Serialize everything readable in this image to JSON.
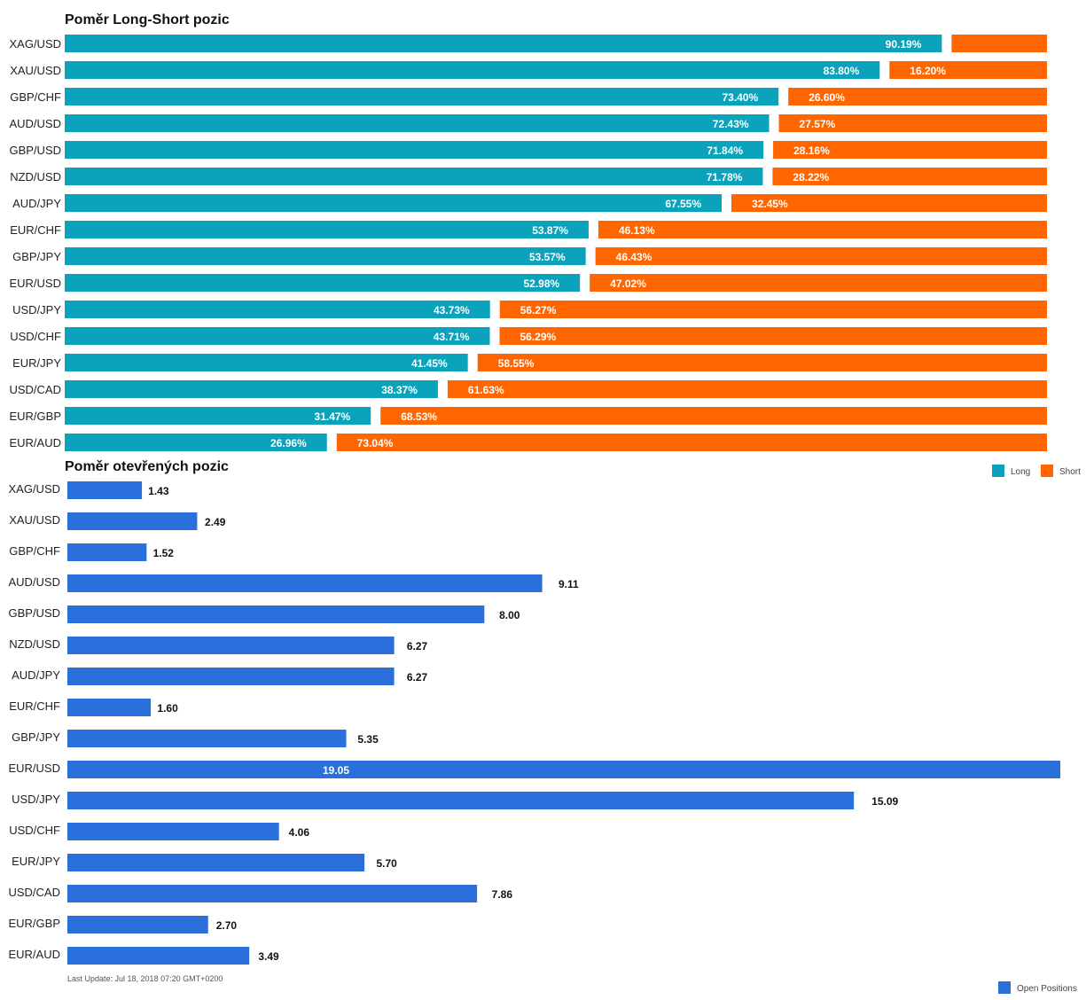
{
  "chart_data": [
    {
      "type": "bar",
      "orientation": "horizontal",
      "stacked": true,
      "title": "Poměr Long-Short pozic",
      "categories": [
        "XAG/USD",
        "XAU/USD",
        "GBP/CHF",
        "AUD/USD",
        "GBP/USD",
        "NZD/USD",
        "AUD/JPY",
        "EUR/CHF",
        "GBP/JPY",
        "EUR/USD",
        "USD/JPY",
        "USD/CHF",
        "EUR/JPY",
        "USD/CAD",
        "EUR/GBP",
        "EUR/AUD"
      ],
      "series": [
        {
          "name": "Long",
          "color": "#0aa3bb",
          "values": [
            90.19,
            83.8,
            73.4,
            72.43,
            71.84,
            71.78,
            67.55,
            53.87,
            53.57,
            52.98,
            43.73,
            43.71,
            41.45,
            38.37,
            31.47,
            26.96
          ],
          "labels": [
            "90.19%",
            "83.80%",
            "73.40%",
            "72.43%",
            "71.84%",
            "71.78%",
            "67.55%",
            "53.87%",
            "53.57%",
            "52.98%",
            "43.73%",
            "43.71%",
            "41.45%",
            "38.37%",
            "31.47%",
            "26.96%"
          ]
        },
        {
          "name": "Short",
          "color": "#ff6600",
          "values": [
            9.81,
            16.2,
            26.6,
            27.57,
            28.16,
            28.22,
            32.45,
            46.13,
            46.43,
            47.02,
            56.27,
            56.29,
            58.55,
            61.63,
            68.53,
            73.04
          ],
          "labels": [
            "",
            "16.20%",
            "26.60%",
            "27.57%",
            "28.16%",
            "28.22%",
            "32.45%",
            "46.13%",
            "46.43%",
            "47.02%",
            "56.27%",
            "56.29%",
            "58.55%",
            "61.63%",
            "68.53%",
            "73.04%"
          ]
        }
      ],
      "xlim": [
        0,
        100
      ],
      "grid": false,
      "legend": "bottom-right"
    },
    {
      "type": "bar",
      "orientation": "horizontal",
      "title": "Poměr otevřených pozic",
      "categories": [
        "XAG/USD",
        "XAU/USD",
        "GBP/CHF",
        "AUD/USD",
        "GBP/USD",
        "NZD/USD",
        "AUD/JPY",
        "EUR/CHF",
        "GBP/JPY",
        "EUR/USD",
        "USD/JPY",
        "USD/CHF",
        "EUR/JPY",
        "USD/CAD",
        "EUR/GBP",
        "EUR/AUD"
      ],
      "series": [
        {
          "name": "Open Positions",
          "color": "#2a6fdb",
          "values": [
            1.43,
            2.49,
            1.52,
            9.11,
            8.0,
            6.27,
            6.27,
            1.6,
            5.35,
            19.05,
            15.09,
            4.06,
            5.7,
            7.86,
            2.7,
            3.49
          ],
          "labels": [
            "1.43",
            "2.49",
            "1.52",
            "9.11",
            "8.00",
            "6.27",
            "6.27",
            "1.60",
            "5.35",
            "19.05",
            "15.09",
            "4.06",
            "5.70",
            "7.86",
            "2.70",
            "3.49"
          ]
        }
      ],
      "xlim": [
        0,
        19.05
      ],
      "grid": false,
      "legend": "bottom-right"
    }
  ],
  "footer": {
    "last_update": "Last Update: Jul 18, 2018 07:20 GMT+0200"
  }
}
